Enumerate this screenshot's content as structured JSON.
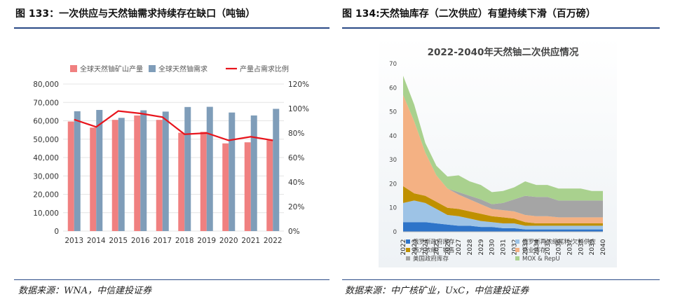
{
  "left": {
    "figure_title": "图 133：一次供应与天然铀需求持续存在缺口（吨铀）",
    "source": "数据来源：WNA，中信建投证券"
  },
  "right": {
    "figure_title": "图 134:天然铀库存（二次供应）有望持续下滑（百万磅）",
    "source": "数据来源：中广核矿业，UxC，中信建投证券"
  },
  "chart_data": [
    {
      "type": "bar",
      "categories": [
        "2013",
        "2014",
        "2015",
        "2016",
        "2017",
        "2018",
        "2019",
        "2020",
        "2021",
        "2022"
      ],
      "series": [
        {
          "name": "全球天然铀矿山产量",
          "kind": "bar",
          "color": "#f08080",
          "values": [
            59600,
            56300,
            60500,
            62900,
            60500,
            53500,
            54000,
            47700,
            48300,
            49400
          ]
        },
        {
          "name": "全球天然铀需求",
          "kind": "bar",
          "color": "#7f9db9",
          "values": [
            65200,
            65900,
            61600,
            65700,
            65000,
            67500,
            67600,
            64500,
            62900,
            66500
          ]
        },
        {
          "name": "产量占需求比例",
          "kind": "line",
          "axis": "right",
          "color": "#e8141c",
          "values": [
            0.91,
            0.85,
            0.98,
            0.96,
            0.93,
            0.79,
            0.8,
            0.74,
            0.77,
            0.74
          ]
        }
      ],
      "yticks": [
        "0",
        "10,000",
        "20,000",
        "30,000",
        "40,000",
        "50,000",
        "60,000",
        "70,000",
        "80,000"
      ],
      "y2ticks": [
        "0%",
        "20%",
        "40%",
        "60%",
        "80%",
        "100%",
        "120%"
      ],
      "ylim": [
        0,
        80000
      ],
      "y2lim": [
        0,
        1.2
      ],
      "legend_position": "top",
      "grid": true
    },
    {
      "type": "area",
      "title": "2022-2040年天然铀二次供应情况",
      "x": [
        "2022",
        "2023",
        "2024",
        "2025",
        "2026",
        "2027",
        "2028",
        "2029",
        "2030",
        "2031",
        "2032",
        "2033",
        "2034",
        "2035",
        "2036",
        "2037",
        "2038",
        "2039",
        "2040"
      ],
      "series": [
        {
          "name": "俄罗斯政府库存",
          "color": "#2e74c9",
          "values": [
            4,
            4,
            4,
            3.5,
            3,
            2.5,
            2.5,
            2,
            2,
            1.5,
            1.5,
            1,
            1,
            1,
            1,
            1,
            1,
            1,
            1
          ]
        },
        {
          "name": "俄罗斯再浓缩尾料/欠料供应",
          "color": "#9dc3e6",
          "values": [
            8,
            9,
            8,
            6,
            4,
            4,
            3,
            2.5,
            2,
            2,
            2,
            1.5,
            1.5,
            1.5,
            1.5,
            1.5,
            1.5,
            1.5,
            1.5
          ]
        },
        {
          "name": "西方浓缩厂销售",
          "color": "#bf9000",
          "values": [
            7,
            3,
            3,
            3,
            3,
            3,
            3,
            3,
            2.5,
            2.5,
            2,
            1.5,
            1,
            1,
            1,
            1,
            1,
            1,
            1
          ]
        },
        {
          "name": "商业库存",
          "color": "#f4b183",
          "values": [
            38,
            30,
            18,
            11,
            8,
            6,
            5,
            4,
            3,
            3,
            3,
            3,
            3,
            3,
            2.5,
            2.5,
            2.5,
            2.5,
            2.5
          ]
        },
        {
          "name": "美国政府库存",
          "color": "#a5a5a5",
          "values": [
            0,
            0,
            0,
            0,
            0,
            1,
            1.5,
            2,
            2,
            3,
            5,
            8,
            8,
            8,
            7,
            7,
            7,
            7,
            7
          ]
        },
        {
          "name": "MOX & RepU",
          "color": "#a9d18e",
          "values": [
            8,
            7,
            4,
            4,
            5,
            7,
            6,
            6,
            5,
            5,
            5,
            6,
            5,
            5,
            5,
            5,
            5,
            4,
            4
          ]
        }
      ],
      "yticks": [
        "0",
        "10",
        "20",
        "30",
        "40",
        "50",
        "60",
        "70"
      ],
      "ylim": [
        0,
        70
      ],
      "legend_position": "bottom",
      "grid": false
    }
  ]
}
